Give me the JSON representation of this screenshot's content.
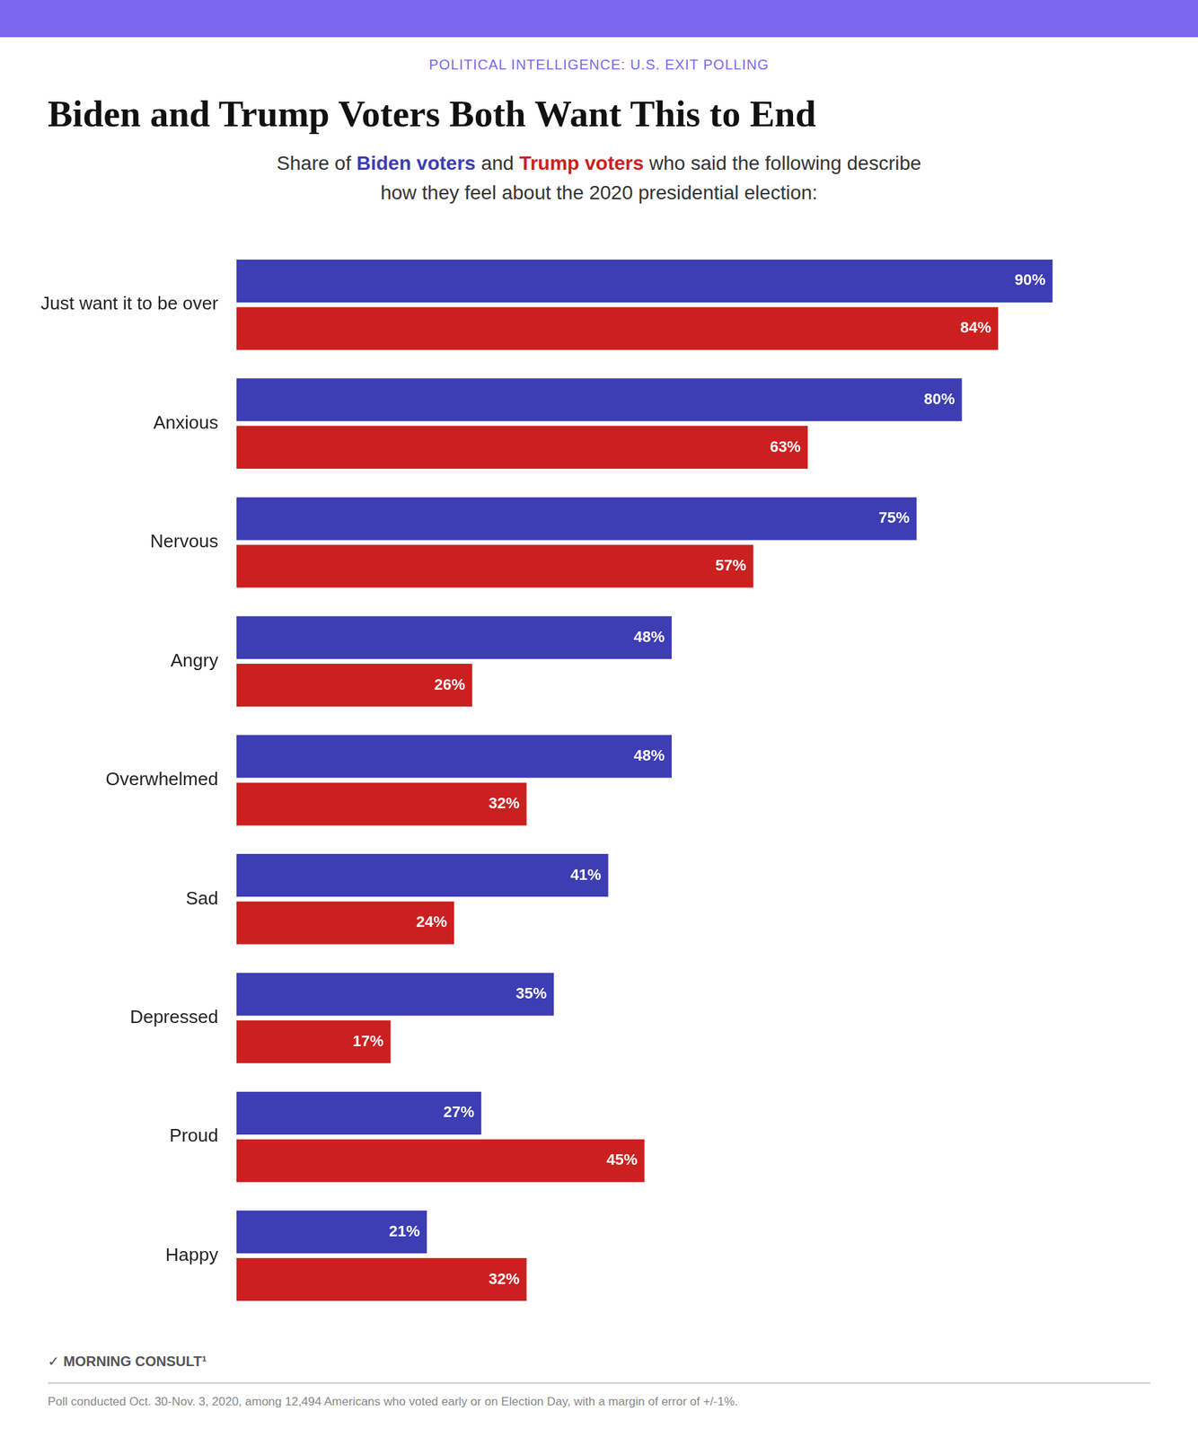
{
  "chart_data": {
    "type": "bar",
    "orientation": "horizontal",
    "title": "Biden and Trump Voters Both Want This to End",
    "subtitle": [
      "Share of Biden voters and Trump voters who said the following describe",
      "how they feel about the 2020 presidential election:"
    ],
    "annotations": [
      "POLITICAL INTELLIGENCE: U.S. EXIT POLLING",
      "✓ MORNING CONSULT¹",
      "Poll conducted Oct. 30-Nov. 3, 2020, among 12,494 Americans who voted early or on Election Day, with a margin of error of +/-1%."
    ],
    "categories": [
      "Just want it to be over",
      "Anxious",
      "Nervous",
      "Angry",
      "Overwhelmed",
      "Sad",
      "Depressed",
      "Proud",
      "Happy"
    ],
    "series": [
      {
        "name": "Biden voters",
        "color": "#3D3DB4",
        "values": [
          90,
          80,
          75,
          48,
          48,
          41,
          35,
          27,
          21
        ],
        "value_labels": [
          "90%",
          "80%",
          "75%",
          "48%",
          "48%",
          "41%",
          "35%",
          "27%",
          "21%"
        ]
      },
      {
        "name": "Trump voters",
        "color": "#CC2020",
        "values": [
          84,
          63,
          57,
          26,
          32,
          24,
          17,
          45,
          32
        ],
        "value_labels": [
          "84%",
          "63%",
          "57%",
          "26%",
          "32%",
          "24%",
          "17%",
          "45%",
          "32%"
        ]
      }
    ],
    "xlim": [
      0,
      100
    ],
    "grid": false,
    "data_labels": true,
    "tick_labels": "y"
  }
}
